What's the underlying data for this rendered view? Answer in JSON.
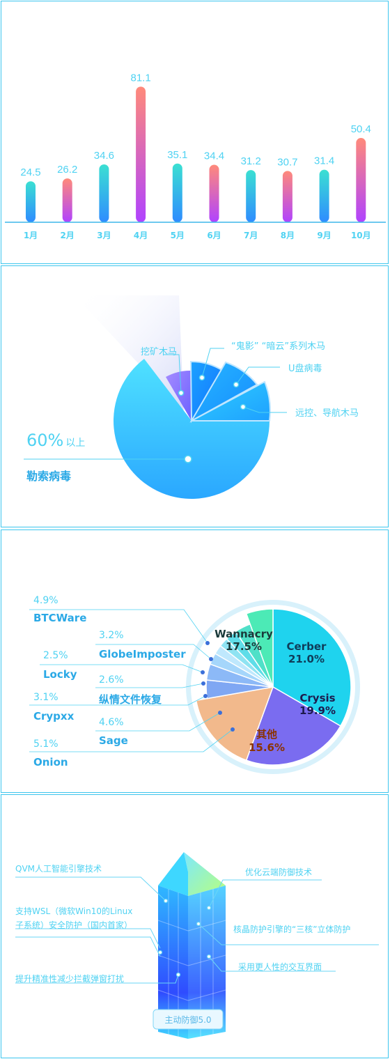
{
  "colors": {
    "border": "#3cc6ee",
    "label": "#4fd2f2",
    "axis": "#3cb7ea"
  },
  "chart_data": [
    {
      "type": "bar",
      "categories": [
        "1月",
        "2月",
        "3月",
        "4月",
        "5月",
        "6月",
        "7月",
        "8月",
        "9月",
        "10月"
      ],
      "values": [
        24.5,
        26.2,
        34.6,
        81.1,
        35.1,
        34.4,
        31.2,
        30.7,
        31.4,
        50.4
      ],
      "title": "",
      "xlabel": "",
      "ylabel": ""
    },
    {
      "type": "pie",
      "slices": [
        {
          "label": "勒索病毒",
          "note": "60%以上"
        },
        {
          "label": "挖矿木马"
        },
        {
          "label": "“鬼影”“暗云”系列木马"
        },
        {
          "label": "U盘病毒"
        },
        {
          "label": "远控、导航木马"
        }
      ],
      "title": ""
    },
    {
      "type": "pie",
      "slices": [
        {
          "label": "Cerber",
          "value": 21.0
        },
        {
          "label": "Crysis",
          "value": 19.9
        },
        {
          "label": "其他",
          "value": 15.6
        },
        {
          "label": "Onion",
          "value": 5.1
        },
        {
          "label": "Sage",
          "value": 4.6
        },
        {
          "label": "Crypxx",
          "value": 3.1
        },
        {
          "label": "纵情文件恢复",
          "value": 2.6
        },
        {
          "label": "Locky",
          "value": 2.5
        },
        {
          "label": "GlobeImposter",
          "value": 3.2
        },
        {
          "label": "BTCWare",
          "value": 4.9
        },
        {
          "label": "Wannacry",
          "value": 17.5
        }
      ],
      "title": ""
    }
  ],
  "ransom_pie": {
    "percent": "60%",
    "percent_suffix": "以上",
    "main_label": "勒索病毒",
    "callouts": [
      "挖矿木马",
      "“鬼影” “暗云”系列木马",
      "U盘病毒",
      "远控、导航木马"
    ]
  },
  "family_pie": {
    "inside": [
      {
        "name": "Wannacry",
        "pct": "17.5%"
      },
      {
        "name": "Cerber",
        "pct": "21.0%"
      },
      {
        "name": "Crysis",
        "pct": "19.9%"
      },
      {
        "name": "其他",
        "pct": "15.6%"
      }
    ],
    "outside": [
      {
        "pct": "4.9%",
        "name": "BTCWare"
      },
      {
        "pct": "3.2%",
        "name": "GlobeImposter"
      },
      {
        "pct": "2.5%",
        "name": "Locky"
      },
      {
        "pct": "2.6%",
        "name": "纵情文件恢复"
      },
      {
        "pct": "3.1%",
        "name": "Crypxx"
      },
      {
        "pct": "4.6%",
        "name": "Sage"
      },
      {
        "pct": "5.1%",
        "name": "Onion"
      }
    ]
  },
  "features": {
    "left": [
      "QVM人工智能引擎技术",
      "支持WSL（微软Win10的Linux",
      "子系统）安全防护（国内首家）",
      "提升精准性减少拦截弹窗打扰"
    ],
    "right": [
      "优化云端防御技术",
      "核晶防护引擎的“三核”立体防护",
      "采用更人性的交互界面"
    ],
    "base_label": "主动防御5.0"
  }
}
